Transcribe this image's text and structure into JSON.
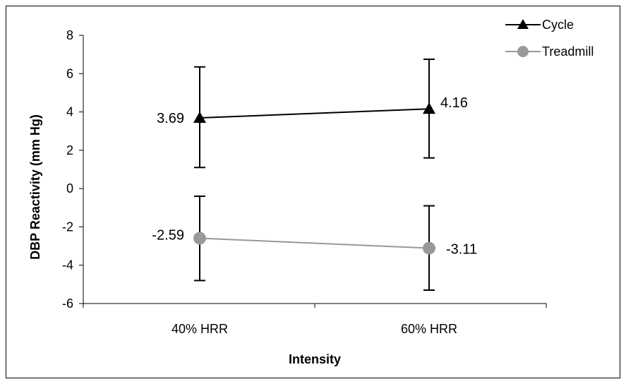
{
  "chart_data": {
    "type": "line",
    "categories": [
      "40% HRR",
      "60% HRR"
    ],
    "xlabel": "Intensity",
    "ylabel": "DBP Reactivity (mm Hg)",
    "ylim": [
      -6,
      8
    ],
    "yticks": [
      "8",
      "6",
      "4",
      "2",
      "0",
      "-2",
      "-4",
      "-6"
    ],
    "ytick_values": [
      8,
      6,
      4,
      2,
      0,
      -2,
      -4,
      -6
    ],
    "grid": false,
    "legend_position": "top-right",
    "series": [
      {
        "name": "Cycle",
        "marker": "triangle",
        "color": "#000000",
        "values": [
          3.69,
          4.16
        ],
        "labels": [
          "3.69",
          "4.16"
        ],
        "error_low": [
          1.1,
          1.6
        ],
        "error_high": [
          6.35,
          6.75
        ]
      },
      {
        "name": "Treadmill",
        "marker": "circle",
        "color": "#999999",
        "values": [
          -2.59,
          -3.11
        ],
        "labels": [
          "-2.59",
          "-3.11"
        ],
        "error_low": [
          -4.8,
          -5.3
        ],
        "error_high": [
          -0.4,
          -0.9
        ]
      }
    ]
  }
}
